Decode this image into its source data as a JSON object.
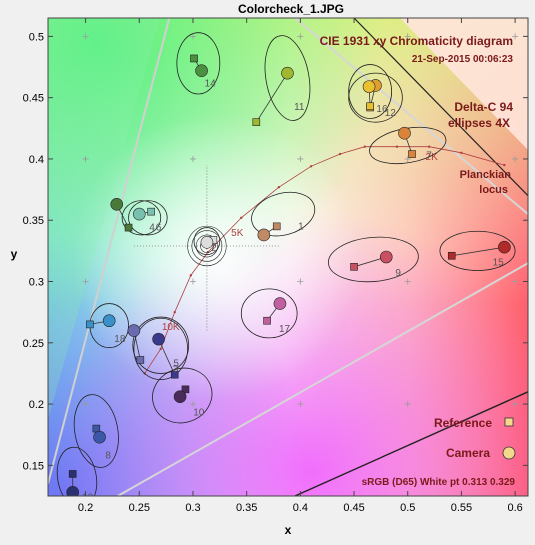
{
  "window": {
    "title": "Colorcheck_1.JPG"
  },
  "chart_data": {
    "type": "scatter",
    "title": "CIE 1931 xy Chromaticity diagram",
    "timestamp": "21-Sep-2015 00:06:23",
    "subtitle_line1": "Delta-C 94",
    "subtitle_line2": "ellipses 4X",
    "xlabel": "x",
    "ylabel": "y",
    "xlim": [
      0.165,
      0.612
    ],
    "ylim": [
      0.125,
      0.515
    ],
    "x_ticks": [
      "0.2",
      "0.25",
      "0.3",
      "0.35",
      "0.4",
      "0.45",
      "0.5",
      "0.55",
      "0.6"
    ],
    "y_ticks": [
      "0.15",
      "0.2",
      "0.25",
      "0.3",
      "0.35",
      "0.4",
      "0.45",
      "0.5"
    ],
    "planckian_label_line1": "Planckian",
    "planckian_label_line2": "locus",
    "planckian_locus": [
      [
        0.255,
        0.225
      ],
      [
        0.27,
        0.245
      ],
      [
        0.283,
        0.275
      ],
      [
        0.298,
        0.305
      ],
      [
        0.314,
        0.324
      ],
      [
        0.345,
        0.352
      ],
      [
        0.38,
        0.377
      ],
      [
        0.41,
        0.394
      ],
      [
        0.437,
        0.404
      ],
      [
        0.46,
        0.41
      ],
      [
        0.49,
        0.41
      ],
      [
        0.52,
        0.41
      ],
      [
        0.55,
        0.405
      ],
      [
        0.59,
        0.395
      ]
    ],
    "cct_labels": [
      {
        "text": "5K",
        "x": 0.345,
        "y": 0.352
      },
      {
        "text": "10K",
        "x": 0.283,
        "y": 0.275
      },
      {
        "text": "2K",
        "x": 0.526,
        "y": 0.414
      }
    ],
    "legend": {
      "reference": "Reference",
      "camera": "Camera",
      "white_point": "sRGB (D65)  White pt  0.313  0.329"
    },
    "reference_color": "#f5d98b",
    "camera_color": "#f5d98b",
    "patches": [
      {
        "id": "1",
        "ref": [
          0.378,
          0.345
        ],
        "cam": [
          0.366,
          0.338
        ],
        "fill": "#c08a64",
        "ell": [
          0.384,
          0.355,
          0.03,
          0.017,
          -15
        ]
      },
      {
        "id": "2",
        "ref": [
          0.319,
          0.334
        ],
        "cam": [
          0.313,
          0.332
        ],
        "fill": "#dddddd",
        "ell": [
          0.313,
          0.333,
          0.012,
          0.011,
          0
        ]
      },
      {
        "id": "3",
        "ref": [
          0.283,
          0.224
        ],
        "cam": [
          0.268,
          0.253
        ],
        "fill": "#3a3a8c",
        "ell": [
          0.27,
          0.245,
          0.025,
          0.025,
          0
        ]
      },
      {
        "id": "4",
        "ref": [
          0.24,
          0.344
        ],
        "cam": [
          0.229,
          0.363
        ],
        "fill": "#4a7a3a",
        "ell": [
          0.252,
          0.352,
          0.018,
          0.014,
          0
        ]
      },
      {
        "id": "5",
        "ref": [
          0.251,
          0.236
        ],
        "cam": [
          0.245,
          0.26
        ],
        "fill": "#6a6ab0",
        "ell": [
          0.27,
          0.248,
          0.026,
          0.023,
          0
        ]
      },
      {
        "id": "6",
        "ref": [
          0.261,
          0.357
        ],
        "cam": [
          0.25,
          0.355
        ],
        "fill": "#78c0b0",
        "ell": [
          0.258,
          0.352,
          0.018,
          0.014,
          0
        ]
      },
      {
        "id": "7",
        "ref": [
          0.504,
          0.404
        ],
        "cam": [
          0.497,
          0.421
        ],
        "fill": "#d9843a",
        "ell": [
          0.5,
          0.411,
          0.036,
          0.014,
          -10
        ]
      },
      {
        "id": "8",
        "ref": [
          0.21,
          0.18
        ],
        "cam": [
          0.213,
          0.173
        ],
        "fill": "#3c56a8",
        "ell": [
          0.21,
          0.178,
          0.02,
          0.03,
          -10
        ]
      },
      {
        "id": "9",
        "ref": [
          0.45,
          0.312
        ],
        "cam": [
          0.48,
          0.32
        ],
        "fill": "#c85060",
        "ell": [
          0.468,
          0.318,
          0.042,
          0.018,
          -5
        ]
      },
      {
        "id": "10",
        "ref": [
          0.293,
          0.212
        ],
        "cam": [
          0.288,
          0.206
        ],
        "fill": "#4a2a5a",
        "ell": [
          0.29,
          0.207,
          0.028,
          0.022,
          -20
        ]
      },
      {
        "id": "11",
        "ref": [
          0.359,
          0.43
        ],
        "cam": [
          0.388,
          0.47
        ],
        "fill": "#a0b830",
        "ell": [
          0.388,
          0.466,
          0.02,
          0.035,
          -10
        ]
      },
      {
        "id": "12",
        "ref": [
          0.465,
          0.442
        ],
        "cam": [
          0.47,
          0.46
        ],
        "fill": "#e0a030",
        "ell": [
          0.47,
          0.45,
          0.025,
          0.02,
          0
        ]
      },
      {
        "id": "13",
        "ref": [
          0.188,
          0.143
        ],
        "cam": [
          0.188,
          0.128
        ],
        "fill": "#2a3070",
        "ell": [
          0.192,
          0.14,
          0.018,
          0.025,
          -10
        ]
      },
      {
        "id": "14",
        "ref": [
          0.301,
          0.482
        ],
        "cam": [
          0.308,
          0.472
        ],
        "fill": "#4a9040",
        "ell": [
          0.305,
          0.478,
          0.02,
          0.025,
          0
        ]
      },
      {
        "id": "15",
        "ref": [
          0.541,
          0.321
        ],
        "cam": [
          0.59,
          0.328
        ],
        "fill": "#b02a2a",
        "ell": [
          0.565,
          0.325,
          0.035,
          0.016,
          0
        ]
      },
      {
        "id": "16",
        "ref": [
          0.465,
          0.443
        ],
        "cam": [
          0.464,
          0.459
        ],
        "fill": "#e8c030",
        "ell": [
          0.465,
          0.455,
          0.02,
          0.022,
          0
        ]
      },
      {
        "id": "17",
        "ref": [
          0.369,
          0.268
        ],
        "cam": [
          0.381,
          0.282
        ],
        "fill": "#c060a0",
        "ell": [
          0.371,
          0.274,
          0.026,
          0.02,
          0
        ]
      },
      {
        "id": "18",
        "ref": [
          0.204,
          0.265
        ],
        "cam": [
          0.222,
          0.268
        ],
        "fill": "#3a90c8",
        "ell": [
          0.222,
          0.264,
          0.018,
          0.018,
          0
        ]
      }
    ]
  }
}
